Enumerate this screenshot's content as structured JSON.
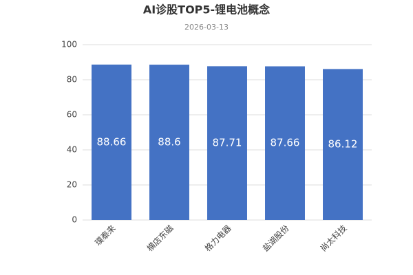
{
  "chart_data": {
    "type": "bar",
    "title": "AI诊股TOP5-锂电池概念",
    "subtitle": "2026-03-13",
    "categories": [
      "璞泰来",
      "横店东磁",
      "格力电器",
      "盐湖股份",
      "尚太科技"
    ],
    "values": [
      88.66,
      88.6,
      87.71,
      87.66,
      86.12
    ],
    "color": "#4472c4",
    "ylim": [
      0,
      100
    ],
    "yticks": [
      0,
      20,
      40,
      60,
      80,
      100
    ],
    "grid": true
  }
}
